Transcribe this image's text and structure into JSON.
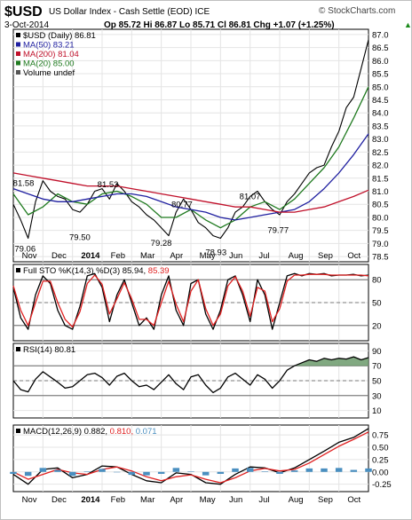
{
  "header": {
    "symbol": "$USD",
    "name": "US Dollar Index - Cash Settle (EOD) ICE",
    "date": "3-Oct-2014",
    "quote": "Op 85.72 Hi 86.87 Lo 85.71 Cl 86.81 Chg +1.07 (+1.25%)",
    "change_arrow": "▲",
    "credit": "© StockCharts.com"
  },
  "colors": {
    "price": "#000000",
    "ma50": "#1f1fa0",
    "ma200": "#c0102a",
    "ma20": "#1f7a1f",
    "signal": "#e02020",
    "rsi_fill": "#6b9a6b",
    "hist": "#4a8fc0"
  },
  "chart_data": [
    {
      "type": "line",
      "panel": "price",
      "legend": [
        {
          "key": "price",
          "label": "$USD (Daily) 86.81"
        },
        {
          "key": "ma50",
          "label": "MA(50) 83.21"
        },
        {
          "key": "ma200",
          "label": "MA(200) 81.04"
        },
        {
          "key": "ma20",
          "label": "MA(20) 85.00"
        },
        {
          "key": "volume",
          "label": "Volume undef"
        }
      ],
      "legend_position": "top-left",
      "ylim": [
        78.3,
        87.2
      ],
      "y_ticks": [
        "78.5",
        "79.0",
        "79.5",
        "80.0",
        "80.5",
        "81.0",
        "81.5",
        "82.0",
        "82.5",
        "83.0",
        "83.5",
        "84.0",
        "84.5",
        "85.0",
        "85.5",
        "86.0",
        "86.5",
        "87.0"
      ],
      "x_axis": [
        "Nov",
        "Dec",
        "2014",
        "Feb",
        "Mar",
        "Apr",
        "May",
        "Jun",
        "Jul",
        "Aug",
        "Sep",
        "Oct"
      ],
      "x_positions": [
        0.5,
        1.5,
        2.5,
        3.5,
        4.5,
        5.5,
        6.5,
        7.5,
        8.5,
        9.5,
        10.5,
        11.5
      ],
      "grid": true,
      "annotations": [
        {
          "text": "81.58",
          "x": 0.35,
          "y": 81.58
        },
        {
          "text": "79.06",
          "x": 0.4,
          "y": 79.06
        },
        {
          "text": "79.50",
          "x": 2.25,
          "y": 79.5
        },
        {
          "text": "81.53",
          "x": 3.2,
          "y": 81.53
        },
        {
          "text": "79.28",
          "x": 5.0,
          "y": 79.28
        },
        {
          "text": "80.77",
          "x": 5.7,
          "y": 80.77
        },
        {
          "text": "78.93",
          "x": 6.85,
          "y": 78.93
        },
        {
          "text": "81.07",
          "x": 8.0,
          "y": 81.07
        },
        {
          "text": "79.77",
          "x": 8.95,
          "y": 79.77
        }
      ],
      "series": [
        {
          "key": "price",
          "x": [
            0,
            0.25,
            0.5,
            0.75,
            1,
            1.25,
            1.5,
            1.75,
            2,
            2.25,
            2.5,
            2.75,
            3,
            3.25,
            3.5,
            3.75,
            4,
            4.25,
            4.5,
            4.75,
            5,
            5.25,
            5.5,
            5.75,
            6,
            6.25,
            6.5,
            6.75,
            7,
            7.25,
            7.5,
            7.75,
            8,
            8.25,
            8.5,
            8.75,
            9,
            9.25,
            9.5,
            9.75,
            10,
            10.25,
            10.5,
            10.75,
            11,
            11.25,
            11.5,
            11.75,
            12
          ],
          "values": [
            80.5,
            79.9,
            79.2,
            80.6,
            81.4,
            81.0,
            80.8,
            80.7,
            80.3,
            80.2,
            80.5,
            81.0,
            81.1,
            80.7,
            81.3,
            81.0,
            80.6,
            80.4,
            80.1,
            79.9,
            79.6,
            79.3,
            80.2,
            80.7,
            80.3,
            79.8,
            79.6,
            79.3,
            79.2,
            79.6,
            80.2,
            80.4,
            80.8,
            81.0,
            80.6,
            80.3,
            80.1,
            80.6,
            80.9,
            81.3,
            81.7,
            81.9,
            82.0,
            82.7,
            83.3,
            84.2,
            84.6,
            85.7,
            86.8
          ]
        },
        {
          "key": "ma20",
          "x": [
            0,
            0.5,
            1,
            1.5,
            2,
            2.5,
            3,
            3.5,
            4,
            4.5,
            5,
            5.5,
            6,
            6.5,
            7,
            7.5,
            8,
            8.5,
            9,
            9.5,
            10,
            10.5,
            11,
            11.5,
            12
          ],
          "values": [
            80.9,
            80.1,
            80.4,
            80.9,
            80.6,
            80.5,
            80.9,
            81.0,
            80.8,
            80.5,
            80.0,
            80.0,
            80.3,
            79.9,
            79.6,
            79.9,
            80.4,
            80.6,
            80.3,
            80.7,
            81.3,
            81.9,
            82.7,
            83.8,
            85.0
          ]
        },
        {
          "key": "ma50",
          "x": [
            0,
            0.5,
            1,
            1.5,
            2,
            2.5,
            3,
            3.5,
            4,
            4.5,
            5,
            5.5,
            6,
            6.5,
            7,
            7.5,
            8,
            8.5,
            9,
            9.5,
            10,
            10.5,
            11,
            11.5,
            12
          ],
          "values": [
            81.1,
            80.9,
            80.7,
            80.6,
            80.6,
            80.7,
            80.8,
            80.9,
            80.9,
            80.8,
            80.6,
            80.4,
            80.3,
            80.2,
            80.0,
            79.9,
            80.0,
            80.1,
            80.2,
            80.3,
            80.6,
            81.1,
            81.7,
            82.4,
            83.2
          ]
        },
        {
          "key": "ma200",
          "x": [
            0,
            0.5,
            1,
            1.5,
            2,
            2.5,
            3,
            3.5,
            4,
            4.5,
            5,
            5.5,
            6,
            6.5,
            7,
            7.5,
            8,
            8.5,
            9,
            9.5,
            10,
            10.5,
            11,
            11.5,
            12
          ],
          "values": [
            81.7,
            81.6,
            81.5,
            81.4,
            81.3,
            81.2,
            81.2,
            81.2,
            81.1,
            81.0,
            80.9,
            80.8,
            80.7,
            80.6,
            80.5,
            80.4,
            80.4,
            80.3,
            80.2,
            80.2,
            80.3,
            80.4,
            80.6,
            80.8,
            81.04
          ]
        }
      ]
    },
    {
      "type": "line",
      "panel": "stochastic",
      "legend": [
        {
          "key": "k",
          "label": "Full STO %K(14,3) %D(3) 85.94,"
        },
        {
          "key": "d",
          "label": "85.39"
        }
      ],
      "ylim": [
        0,
        100
      ],
      "y_ticks": [
        "20",
        "50",
        "80"
      ],
      "ref_lines": [
        20,
        50,
        80
      ],
      "series": [
        {
          "key": "k",
          "x": [
            0,
            0.25,
            0.5,
            0.75,
            1,
            1.25,
            1.5,
            1.75,
            2,
            2.25,
            2.5,
            2.75,
            3,
            3.25,
            3.5,
            3.75,
            4,
            4.25,
            4.5,
            4.75,
            5,
            5.25,
            5.5,
            5.75,
            6,
            6.25,
            6.5,
            6.75,
            7,
            7.25,
            7.5,
            7.75,
            8,
            8.25,
            8.5,
            8.75,
            9,
            9.25,
            9.5,
            9.75,
            10,
            10.25,
            10.5,
            10.75,
            11,
            11.25,
            11.5,
            11.75,
            12
          ],
          "values": [
            70,
            30,
            15,
            60,
            85,
            75,
            40,
            20,
            15,
            45,
            85,
            88,
            70,
            25,
            60,
            80,
            50,
            20,
            30,
            15,
            60,
            85,
            40,
            20,
            75,
            80,
            35,
            15,
            40,
            80,
            85,
            60,
            25,
            80,
            60,
            15,
            50,
            85,
            88,
            85,
            88,
            87,
            88,
            85,
            86,
            86,
            87,
            85,
            86
          ]
        },
        {
          "key": "d",
          "x": [
            0,
            0.25,
            0.5,
            0.75,
            1,
            1.25,
            1.5,
            1.75,
            2,
            2.25,
            2.5,
            2.75,
            3,
            3.25,
            3.5,
            3.75,
            4,
            4.25,
            4.5,
            4.75,
            5,
            5.25,
            5.5,
            5.75,
            6,
            6.25,
            6.5,
            6.75,
            7,
            7.25,
            7.5,
            7.75,
            8,
            8.25,
            8.5,
            8.75,
            9,
            9.25,
            9.5,
            9.75,
            10,
            10.25,
            10.5,
            10.75,
            11,
            11.25,
            11.5,
            11.75,
            12
          ],
          "values": [
            72,
            40,
            20,
            50,
            78,
            78,
            50,
            28,
            18,
            38,
            75,
            86,
            74,
            35,
            55,
            76,
            55,
            28,
            28,
            20,
            50,
            78,
            48,
            25,
            65,
            80,
            42,
            20,
            35,
            72,
            84,
            65,
            32,
            70,
            65,
            25,
            42,
            78,
            86,
            86,
            87,
            87,
            87,
            86,
            86,
            86,
            86,
            86,
            85
          ]
        }
      ]
    },
    {
      "type": "area",
      "panel": "rsi",
      "legend": [
        {
          "key": "rsi",
          "label": "RSI(14) 80.81"
        }
      ],
      "ylim": [
        0,
        100
      ],
      "y_ticks": [
        "10",
        "30",
        "50",
        "70",
        "90"
      ],
      "ref_lines": [
        30,
        50,
        70
      ],
      "series": [
        {
          "key": "rsi",
          "x": [
            0,
            0.25,
            0.5,
            0.75,
            1,
            1.25,
            1.5,
            1.75,
            2,
            2.25,
            2.5,
            2.75,
            3,
            3.25,
            3.5,
            3.75,
            4,
            4.25,
            4.5,
            4.75,
            5,
            5.25,
            5.5,
            5.75,
            6,
            6.25,
            6.5,
            6.75,
            7,
            7.25,
            7.5,
            7.75,
            8,
            8.25,
            8.5,
            8.75,
            9,
            9.25,
            9.5,
            9.75,
            10,
            10.25,
            10.5,
            10.75,
            11,
            11.25,
            11.5,
            11.75,
            12
          ],
          "values": [
            50,
            38,
            35,
            52,
            62,
            55,
            48,
            40,
            42,
            50,
            58,
            60,
            54,
            44,
            56,
            60,
            50,
            42,
            44,
            38,
            48,
            58,
            46,
            38,
            55,
            58,
            44,
            34,
            40,
            55,
            60,
            52,
            44,
            58,
            52,
            40,
            50,
            64,
            70,
            74,
            78,
            76,
            80,
            78,
            80,
            79,
            82,
            78,
            81
          ]
        }
      ]
    },
    {
      "type": "line",
      "panel": "macd",
      "legend": [
        {
          "key": "macd",
          "label": "MACD(12,26,9) 0.882,"
        },
        {
          "key": "signal",
          "label": "0.810,"
        },
        {
          "key": "hist",
          "label": "0.071"
        }
      ],
      "ylim": [
        -0.4,
        0.95
      ],
      "y_ticks": [
        "-0.25",
        "0.00",
        "0.25",
        "0.50",
        "0.75"
      ],
      "series": [
        {
          "key": "macd",
          "x": [
            0,
            0.5,
            1,
            1.5,
            2,
            2.5,
            3,
            3.5,
            4,
            4.5,
            5,
            5.5,
            6,
            6.5,
            7,
            7.5,
            8,
            8.5,
            9,
            9.5,
            10,
            10.5,
            11,
            11.5,
            12
          ],
          "values": [
            -0.05,
            -0.25,
            0.05,
            0.08,
            -0.12,
            -0.05,
            0.12,
            0.1,
            -0.05,
            -0.18,
            -0.22,
            -0.02,
            -0.05,
            -0.22,
            -0.25,
            -0.05,
            0.1,
            0.08,
            -0.02,
            0.08,
            0.25,
            0.42,
            0.6,
            0.7,
            0.88
          ]
        },
        {
          "key": "signal",
          "x": [
            0,
            0.5,
            1,
            1.5,
            2,
            2.5,
            3,
            3.5,
            4,
            4.5,
            5,
            5.5,
            6,
            6.5,
            7,
            7.5,
            8,
            8.5,
            9,
            9.5,
            10,
            10.5,
            11,
            11.5,
            12
          ],
          "values": [
            0.0,
            -0.15,
            -0.05,
            0.05,
            -0.02,
            -0.05,
            0.05,
            0.1,
            0.02,
            -0.1,
            -0.18,
            -0.1,
            -0.06,
            -0.15,
            -0.22,
            -0.12,
            0.02,
            0.07,
            0.02,
            0.05,
            0.18,
            0.35,
            0.52,
            0.66,
            0.81
          ]
        },
        {
          "key": "hist",
          "x": [
            0,
            0.5,
            1,
            1.5,
            2,
            2.5,
            3,
            3.5,
            4,
            4.5,
            5,
            5.5,
            6,
            6.5,
            7,
            7.5,
            8,
            8.5,
            9,
            9.5,
            10,
            10.5,
            11,
            11.5,
            12
          ],
          "values": [
            -0.04,
            -0.08,
            0.08,
            0.04,
            -0.08,
            0.01,
            0.06,
            0.0,
            -0.06,
            -0.07,
            -0.04,
            0.08,
            0.01,
            -0.07,
            -0.04,
            0.07,
            0.08,
            0.01,
            -0.04,
            0.03,
            0.07,
            0.07,
            0.08,
            0.04,
            0.07
          ]
        }
      ]
    }
  ]
}
